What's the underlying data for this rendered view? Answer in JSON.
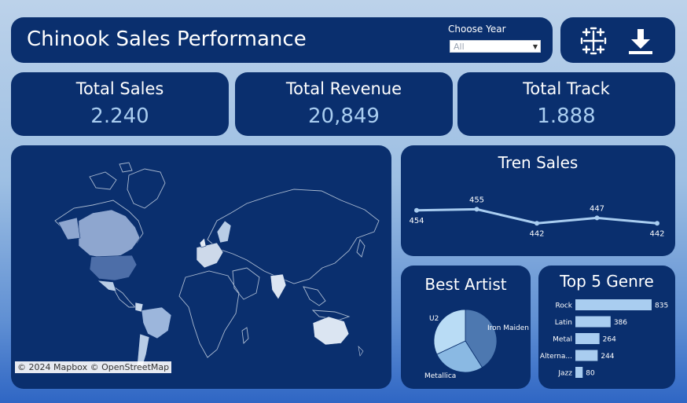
{
  "header": {
    "title": "Chinook Sales Performance",
    "year_label": "Choose Year",
    "year_value": "All"
  },
  "icons": {
    "left": "tableau-logo-icon",
    "right": "download-icon"
  },
  "kpis": {
    "sales": {
      "label": "Total Sales",
      "value": "2.240"
    },
    "revenue": {
      "label": "Total Revenue",
      "value": "20,849"
    },
    "track": {
      "label": "Total Track",
      "value": "1.888"
    }
  },
  "map": {
    "credit": "© 2024 Mapbox © OpenStreetMap"
  },
  "colors": {
    "card": "#0a2f6e",
    "accent": "#a9cdf0",
    "bar": "#a9cdf0"
  },
  "chart_data": [
    {
      "type": "line",
      "title": "Tren Sales",
      "x": [
        1,
        2,
        3,
        4,
        5
      ],
      "values": [
        454,
        455,
        442,
        447,
        442
      ],
      "labels": [
        "454",
        "455",
        "442",
        "447",
        "442"
      ],
      "grid": false
    },
    {
      "type": "pie",
      "title": "Best Artist",
      "categories": [
        "Iron Maiden",
        "Metallica",
        "U2"
      ],
      "values": [
        41,
        27,
        32
      ],
      "colors": [
        "#4d78b0",
        "#8ab9e3",
        "#b9dcf5"
      ]
    },
    {
      "type": "bar",
      "title": "Top 5 Genre",
      "categories": [
        "Rock",
        "Latin",
        "Metal",
        "Alterna...",
        "Jazz"
      ],
      "values": [
        835,
        386,
        264,
        244,
        80
      ],
      "orientation": "horizontal"
    }
  ]
}
